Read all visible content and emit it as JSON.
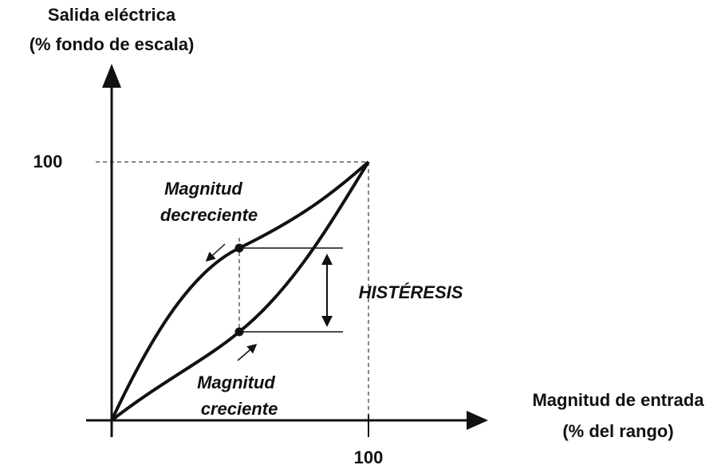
{
  "y_axis": {
    "label_line1": "Salida eléctrica",
    "label_line2": "(% fondo de escala)",
    "tick": "100"
  },
  "x_axis": {
    "label_line1": "Magnitud de entrada",
    "label_line2": "(% del rango)",
    "tick": "100"
  },
  "annotations": {
    "decreasing_line1": "Magnitud",
    "decreasing_line2": "decreciente",
    "increasing_line1": "Magnitud",
    "increasing_line2": "creciente",
    "hysteresis": "HISTÉRESIS"
  }
}
